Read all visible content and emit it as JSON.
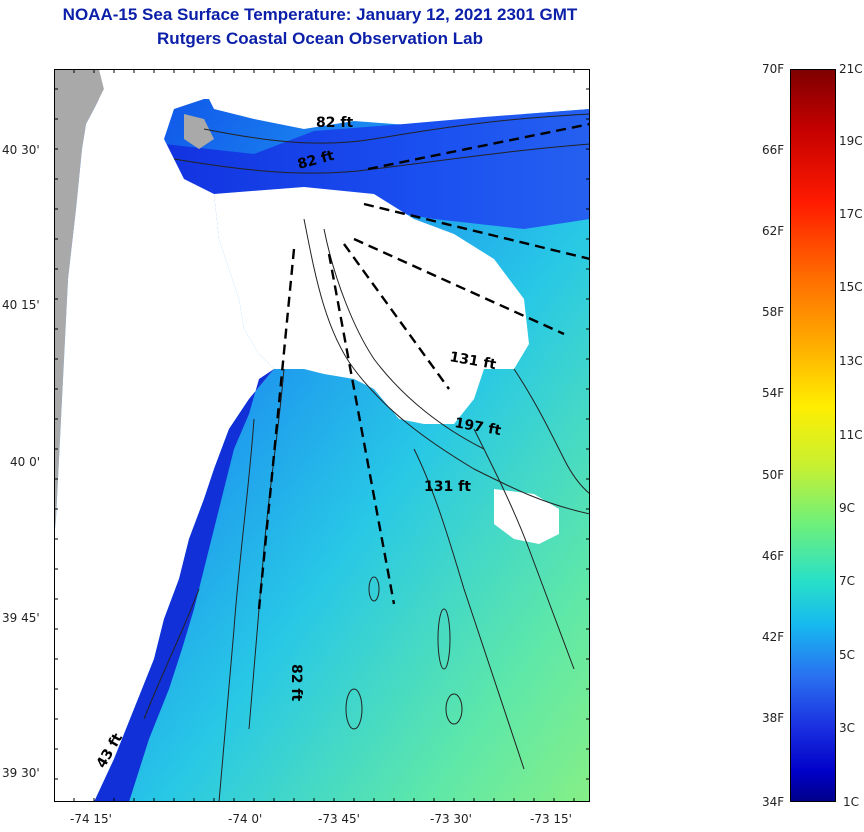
{
  "header": {
    "title": "NOAA-15 Sea Surface Temperature:  January 12, 2021 2301 GMT",
    "subtitle": "Rutgers Coastal Ocean Observation Lab"
  },
  "map": {
    "lat_labels": [
      "40 30'",
      "40 15'",
      "40 0'",
      "39 45'",
      "39 30'"
    ],
    "lon_labels": [
      "-74 15'",
      "-74 0'",
      "-73 45'",
      "-73 30'",
      "-73 15'"
    ],
    "depth_labels": [
      "82 ft",
      "82 ft",
      "131 ft",
      "197 ft",
      "131 ft",
      "82 ft",
      "43 ft"
    ],
    "colors": {
      "land": "#a9a9a9",
      "cloud": "#ffffff",
      "contour": "#222222"
    }
  },
  "colorbar": {
    "fahrenheit_labels": [
      "70F",
      "66F",
      "62F",
      "58F",
      "54F",
      "50F",
      "46F",
      "42F",
      "38F",
      "34F"
    ],
    "celsius_labels": [
      "21C",
      "19C",
      "17C",
      "15C",
      "13C",
      "11C",
      "9C",
      "7C",
      "5C",
      "3C",
      "1C"
    ]
  }
}
